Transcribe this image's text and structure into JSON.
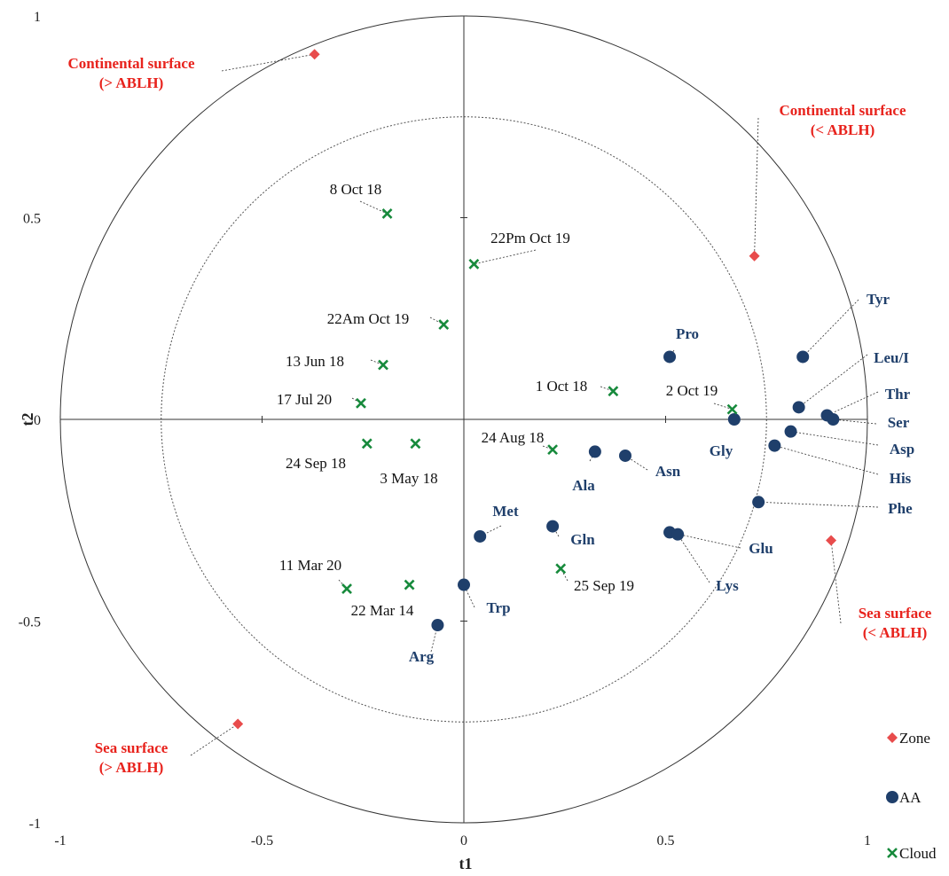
{
  "chart_data": {
    "type": "scatter",
    "xlabel": "t1",
    "ylabel": "t2",
    "xlim": [
      -1,
      1
    ],
    "ylim": [
      -1,
      1
    ],
    "x_ticks": [
      "-1",
      "-0.5",
      "0",
      "0.5",
      "1"
    ],
    "y_ticks": [
      "1",
      "0.5",
      "0",
      "-0.5",
      "-1"
    ],
    "grid": false,
    "correlation_circles": [
      0.75,
      1.0
    ],
    "legend_position": "bottom-right",
    "colors": {
      "Zone": "#e84c4c",
      "AA": "#1f3f6b",
      "Cloud": "#178a3c"
    },
    "series": [
      {
        "name": "Zone",
        "marker": "diamond",
        "points": [
          {
            "label": "Continental surface\n(> ABLH)",
            "x": -0.37,
            "y": 0.905
          },
          {
            "label": "Continental surface\n(< ABLH)",
            "x": 0.72,
            "y": 0.405
          },
          {
            "label": "Sea surface\n(< ABLH)",
            "x": 0.91,
            "y": -0.3
          },
          {
            "label": "Sea surface\n(> ABLH)",
            "x": -0.56,
            "y": -0.755
          }
        ]
      },
      {
        "name": "AA",
        "marker": "circle",
        "points": [
          {
            "label": "Pro",
            "x": 0.51,
            "y": 0.155
          },
          {
            "label": "Tyr",
            "x": 0.84,
            "y": 0.155
          },
          {
            "label": "Leu/I",
            "x": 0.83,
            "y": 0.03
          },
          {
            "label": "Thr",
            "x": 0.9,
            "y": 0.01
          },
          {
            "label": "Ser",
            "x": 0.915,
            "y": 0.0
          },
          {
            "label": "Gly",
            "x": 0.67,
            "y": 0.0
          },
          {
            "label": "Asp",
            "x": 0.81,
            "y": -0.03
          },
          {
            "label": "His",
            "x": 0.77,
            "y": -0.065
          },
          {
            "label": "Ala",
            "x": 0.325,
            "y": -0.08
          },
          {
            "label": "Asn",
            "x": 0.4,
            "y": -0.09
          },
          {
            "label": "Phe",
            "x": 0.73,
            "y": -0.205
          },
          {
            "label": "Gln",
            "x": 0.22,
            "y": -0.265
          },
          {
            "label": "Met",
            "x": 0.04,
            "y": -0.29
          },
          {
            "label": "Glu",
            "x": 0.51,
            "y": -0.28
          },
          {
            "label": "Lys",
            "x": 0.53,
            "y": -0.285
          },
          {
            "label": "Trp",
            "x": 0.0,
            "y": -0.41
          },
          {
            "label": "Arg",
            "x": -0.065,
            "y": -0.51
          }
        ]
      },
      {
        "name": "Cloud",
        "marker": "x",
        "points": [
          {
            "label": "8 Oct 18",
            "x": -0.19,
            "y": 0.51
          },
          {
            "label": "22Pm Oct 19",
            "x": 0.025,
            "y": 0.385
          },
          {
            "label": "22Am Oct 19",
            "x": -0.05,
            "y": 0.235
          },
          {
            "label": "13 Jun 18",
            "x": -0.2,
            "y": 0.135
          },
          {
            "label": "17 Jul 20",
            "x": -0.255,
            "y": 0.04
          },
          {
            "label": "1 Oct 18",
            "x": 0.37,
            "y": 0.07
          },
          {
            "label": "2 Oct 19",
            "x": 0.665,
            "y": 0.025
          },
          {
            "label": "24 Sep 18",
            "x": -0.24,
            "y": -0.06
          },
          {
            "label": "3 May 18",
            "x": -0.12,
            "y": -0.06
          },
          {
            "label": "24 Aug 18",
            "x": 0.22,
            "y": -0.075
          },
          {
            "label": "25 Sep 19",
            "x": 0.24,
            "y": -0.37
          },
          {
            "label": "11 Mar 20",
            "x": -0.29,
            "y": -0.42
          },
          {
            "label": "22 Mar 14",
            "x": -0.135,
            "y": -0.41
          }
        ]
      }
    ]
  }
}
